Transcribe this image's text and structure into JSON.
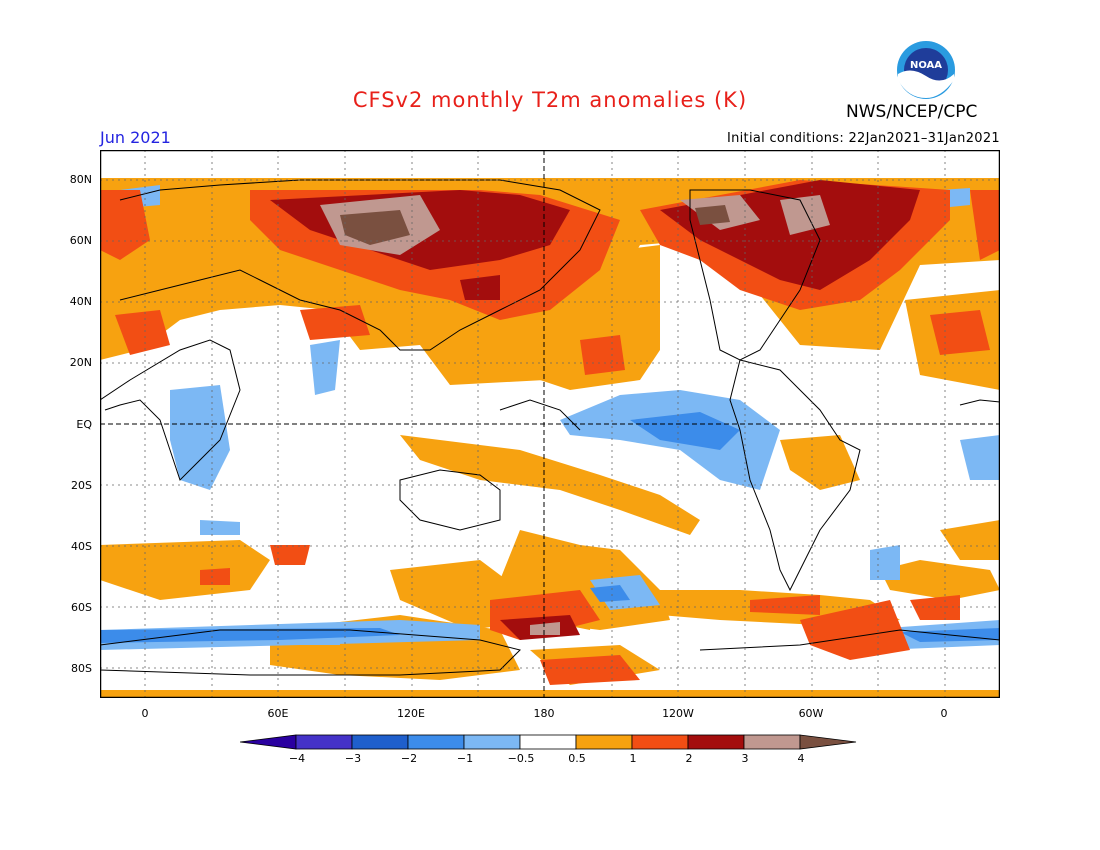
{
  "header": {
    "title": "CFSv2 monthly T2m anomalies (K)",
    "month": "Jun 2021",
    "initial_conditions": "Initial conditions: 22Jan2021–31Jan2021",
    "agency": "NWS/NCEP/CPC",
    "logo_text": "NOAA"
  },
  "axes": {
    "lat_labels": [
      "80N",
      "60N",
      "40N",
      "20N",
      "EQ",
      "20S",
      "40S",
      "60S",
      "80S"
    ],
    "lon_labels": [
      "0",
      "60E",
      "120E",
      "180",
      "120W",
      "60W",
      "0"
    ]
  },
  "colorbar": {
    "labels": [
      "−4",
      "−3",
      "−2",
      "−1",
      "−0.5",
      "0.5",
      "1",
      "2",
      "3",
      "4"
    ],
    "colors": [
      "#2a00a0",
      "#4432c8",
      "#1f5fcc",
      "#3c8cea",
      "#7cb8f4",
      "#ffffff",
      "#f7a210",
      "#f24e14",
      "#a30d0d",
      "#c09890",
      "#7a5040"
    ]
  }
}
